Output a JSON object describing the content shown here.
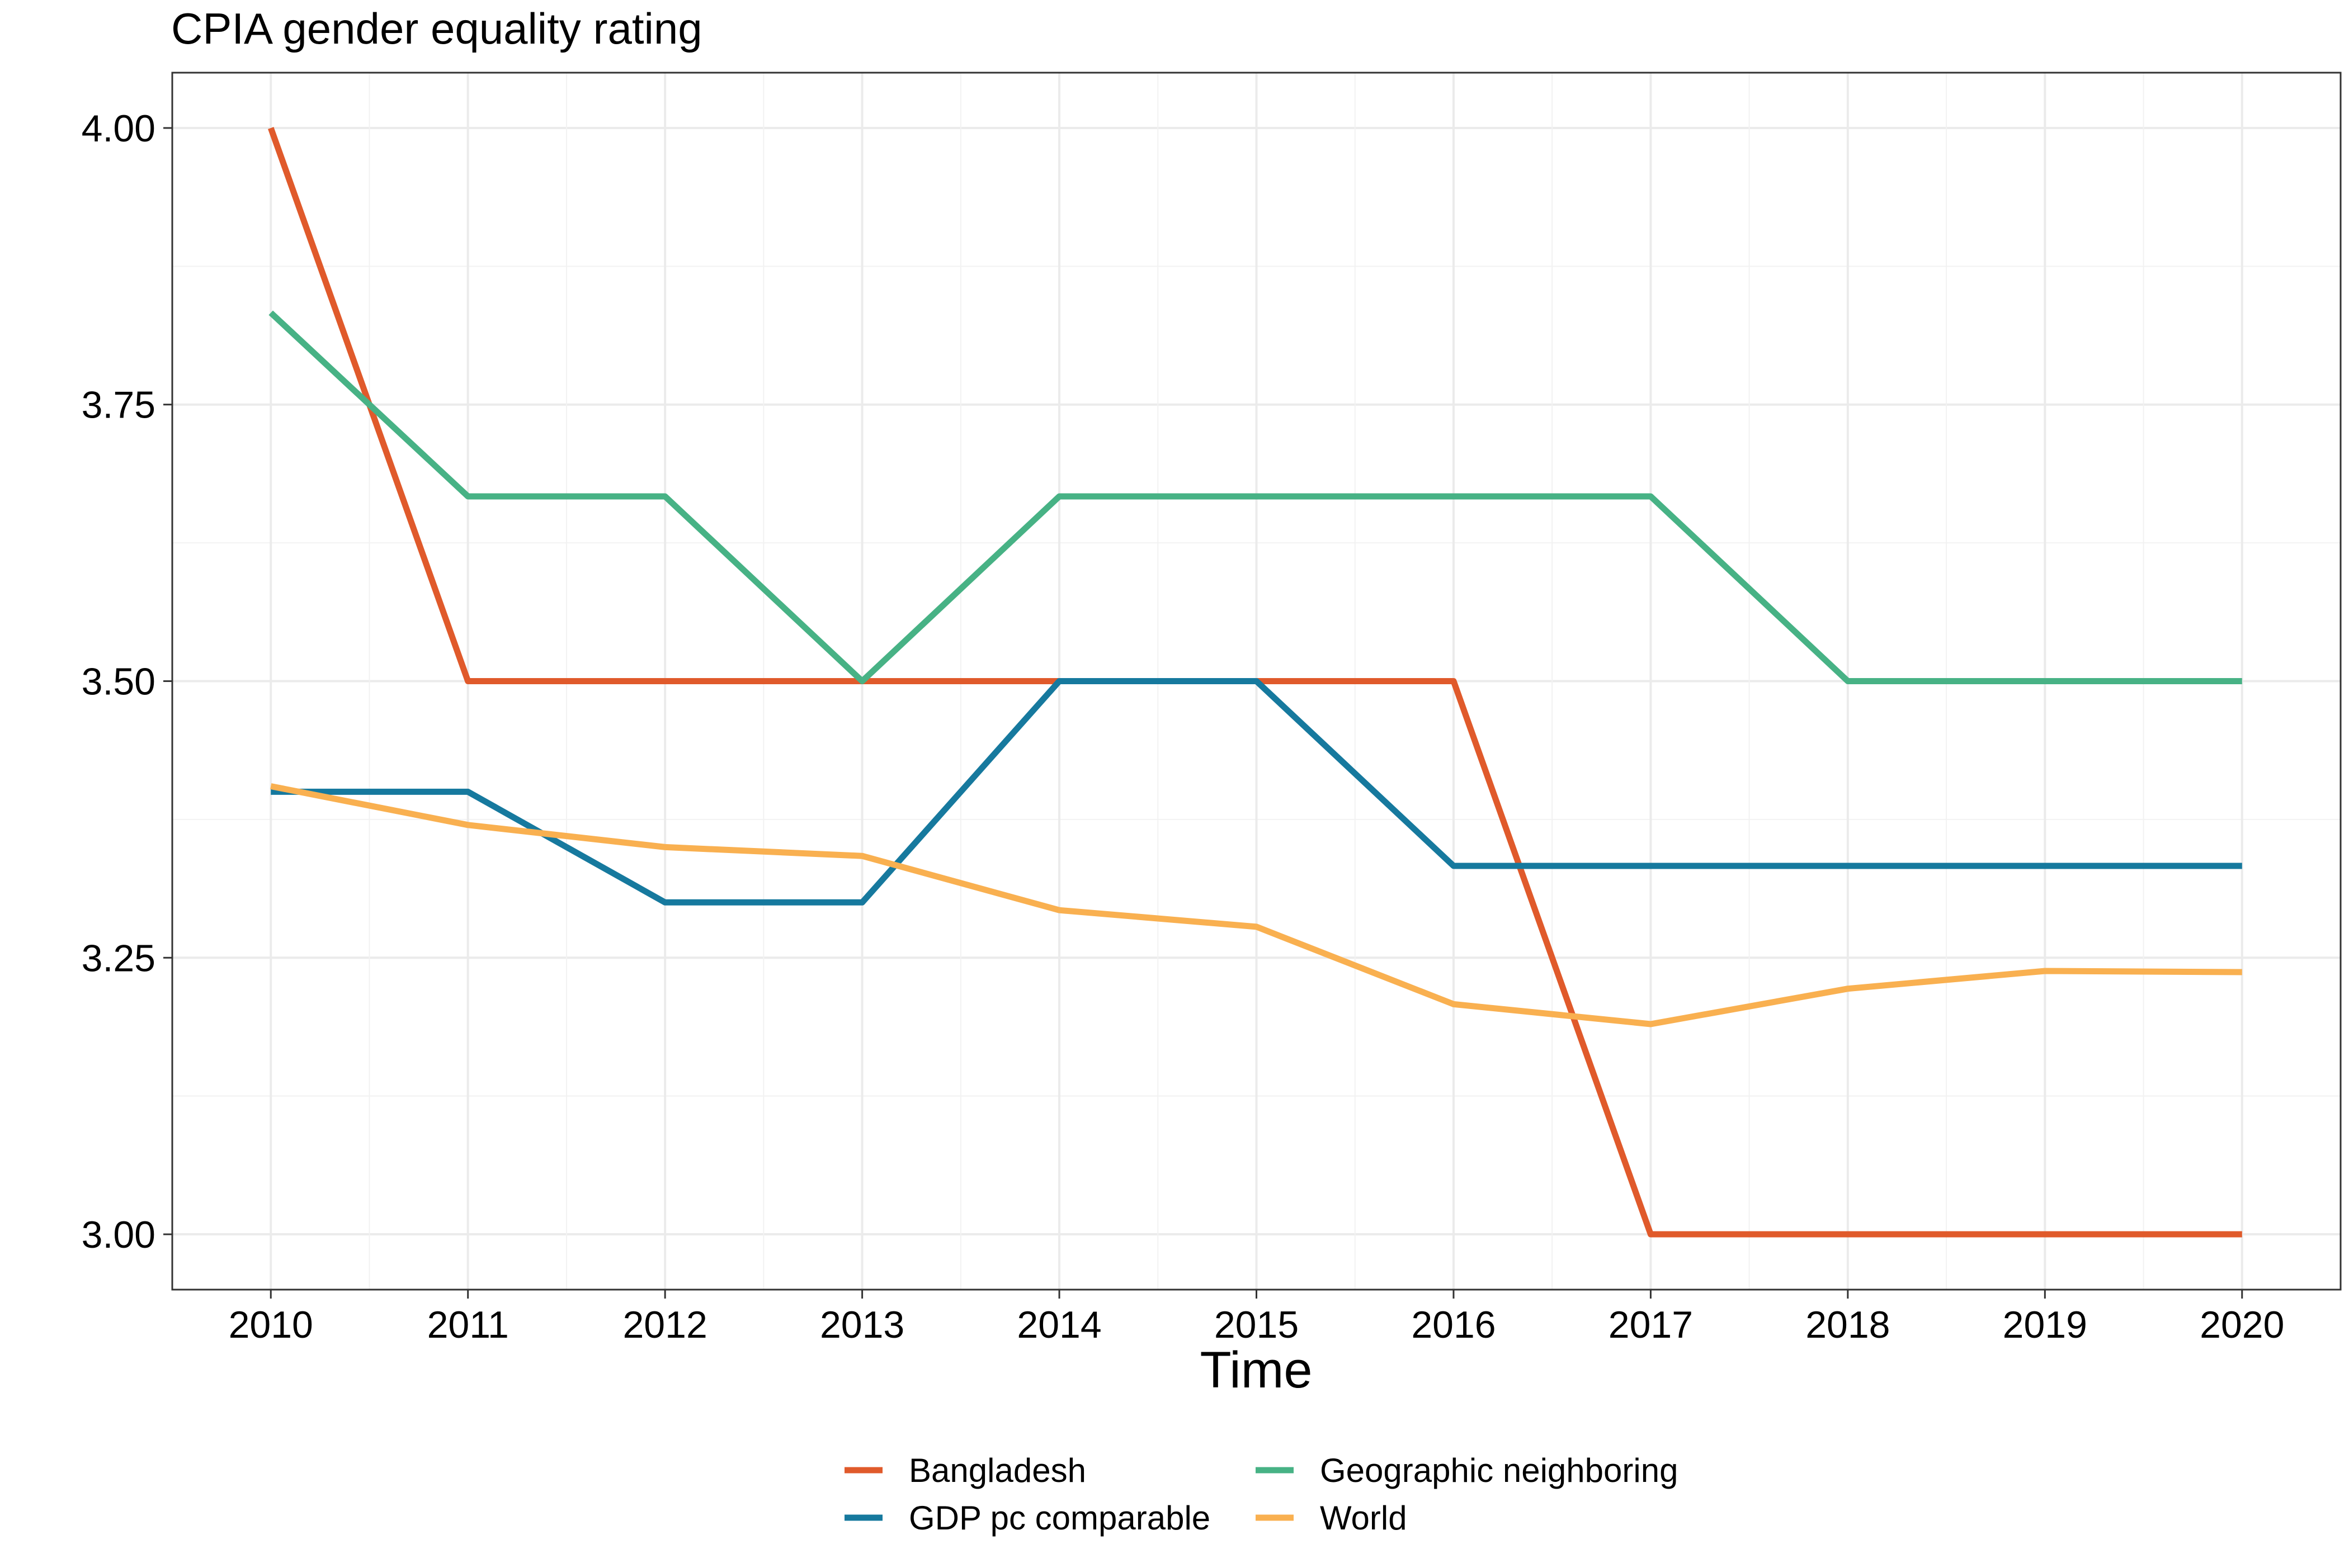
{
  "chart_data": {
    "type": "line",
    "title": "CPIA gender equality rating",
    "xlabel": "Time",
    "ylabel": "",
    "x": [
      2010,
      2011,
      2012,
      2013,
      2014,
      2015,
      2016,
      2017,
      2018,
      2019,
      2020
    ],
    "xlim": [
      2009.5,
      2020.5
    ],
    "ylim": [
      2.95,
      4.05
    ],
    "yticks": [
      "3.00",
      "3.25",
      "3.50",
      "3.75",
      "4.00"
    ],
    "grid": true,
    "legend_position": "bottom",
    "series": [
      {
        "name": "Bangladesh",
        "color": "#E05A2B",
        "values": [
          4.0,
          3.5,
          3.5,
          3.5,
          3.5,
          3.5,
          3.5,
          3.0,
          3.0,
          3.0,
          3.0
        ]
      },
      {
        "name": "GDP pc comparable",
        "color": "#16799E",
        "values": [
          3.4,
          3.4,
          3.3,
          3.3,
          3.5,
          3.5,
          3.333,
          3.333,
          3.333,
          3.333,
          3.333
        ]
      },
      {
        "name": "Geographic neighboring",
        "color": "#47B285",
        "values": [
          3.833,
          3.667,
          3.667,
          3.5,
          3.667,
          3.667,
          3.667,
          3.667,
          3.5,
          3.5,
          3.5
        ]
      },
      {
        "name": "World",
        "color": "#F9B050",
        "values": [
          3.405,
          3.37,
          3.35,
          3.342,
          3.293,
          3.278,
          3.208,
          3.19,
          3.222,
          3.238,
          3.237
        ]
      }
    ]
  }
}
